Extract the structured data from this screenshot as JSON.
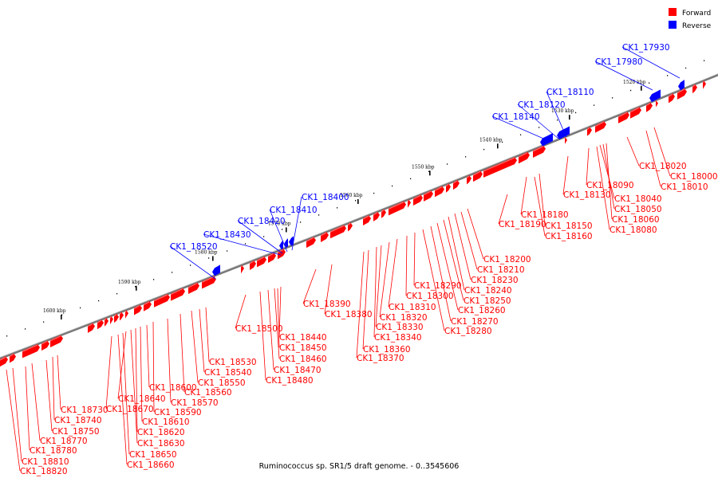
{
  "caption": "Ruminococcus sp. SR1/5 draft genome. - 0..3545606",
  "colors": {
    "forward": "#ff0000",
    "reverse": "#0000ff",
    "backbone": "#777777"
  },
  "legend": [
    {
      "label": "Forward",
      "color": "#ff0000"
    },
    {
      "label": "Reverse",
      "color": "#0000ff"
    }
  ],
  "scale_ticks": [
    "1520 kbp",
    "1530 kbp",
    "1540 kbp",
    "1550 kbp",
    "1560 kbp",
    "1570 kbp",
    "1580 kbp",
    "1590 kbp",
    "1600 kbp"
  ],
  "reverse_genes": [
    "CK1_17930",
    "CK1_17980",
    "CK1_18110",
    "CK1_18120",
    "CK1_18140",
    "CK1_18400",
    "CK1_18410",
    "CK1_18420",
    "CK1_18430",
    "CK1_18520"
  ],
  "forward_genes": [
    "CK1_18000",
    "CK1_18010",
    "CK1_18020",
    "CK1_18040",
    "CK1_18050",
    "CK1_18060",
    "CK1_18080",
    "CK1_18090",
    "CK1_18130",
    "CK1_18150",
    "CK1_18160",
    "CK1_18180",
    "CK1_18190",
    "CK1_18200",
    "CK1_18210",
    "CK1_18230",
    "CK1_18240",
    "CK1_18250",
    "CK1_18260",
    "CK1_18270",
    "CK1_18280",
    "CK1_18290",
    "CK1_18300",
    "CK1_18310",
    "CK1_18320",
    "CK1_18330",
    "CK1_18340",
    "CK1_18360",
    "CK1_18370",
    "CK1_18380",
    "CK1_18390",
    "CK1_18440",
    "CK1_18450",
    "CK1_18460",
    "CK1_18470",
    "CK1_18480",
    "CK1_18500",
    "CK1_18530",
    "CK1_18540",
    "CK1_18550",
    "CK1_18560",
    "CK1_18570",
    "CK1_18590",
    "CK1_18600",
    "CK1_18610",
    "CK1_18620",
    "CK1_18630",
    "CK1_18640",
    "CK1_18650",
    "CK1_18660",
    "CK1_18670",
    "CK1_18730",
    "CK1_18740",
    "CK1_18750",
    "CK1_18770",
    "CK1_18780",
    "CK1_18810",
    "CK1_18820"
  ]
}
